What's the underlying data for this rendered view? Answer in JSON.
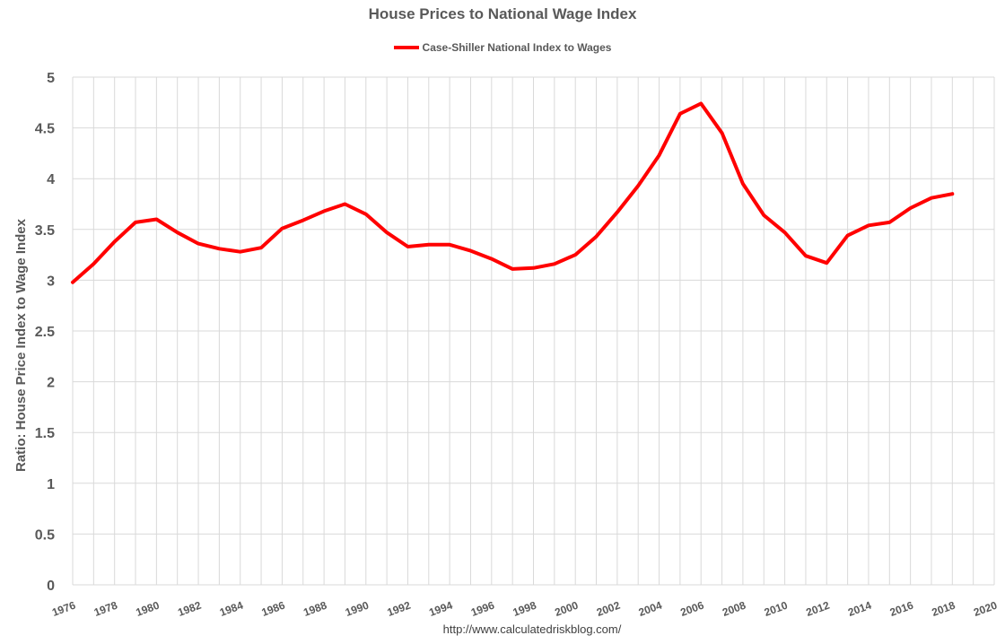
{
  "chart_data": {
    "type": "line",
    "title": "House Prices to National Wage Index",
    "xlabel": "",
    "ylabel": "Ratio: House Price Index to Wage Index",
    "xlim": [
      1976,
      2020
    ],
    "ylim": [
      0,
      5
    ],
    "ytick_step": 0.5,
    "yticks": [
      "0",
      "0.5",
      "1",
      "1.5",
      "2",
      "2.5",
      "3",
      "3.5",
      "4",
      "4.5",
      "5"
    ],
    "xticks": [
      "1976",
      "1978",
      "1980",
      "1982",
      "1984",
      "1986",
      "1988",
      "1990",
      "1992",
      "1994",
      "1996",
      "1998",
      "2000",
      "2002",
      "2004",
      "2006",
      "2008",
      "2010",
      "2012",
      "2014",
      "2016",
      "2018",
      "2020"
    ],
    "grid": true,
    "legend_position": "top",
    "series": [
      {
        "name": "Case-Shiller National Index to Wages",
        "color": "#ff0000",
        "x": [
          1976,
          1977,
          1978,
          1979,
          1980,
          1981,
          1982,
          1983,
          1984,
          1985,
          1986,
          1987,
          1988,
          1989,
          1990,
          1991,
          1992,
          1993,
          1994,
          1995,
          1996,
          1997,
          1998,
          1999,
          2000,
          2001,
          2002,
          2003,
          2004,
          2005,
          2006,
          2007,
          2008,
          2009,
          2010,
          2011,
          2012,
          2013,
          2014,
          2015,
          2016,
          2017,
          2018
        ],
        "values": [
          2.98,
          3.16,
          3.38,
          3.57,
          3.6,
          3.47,
          3.36,
          3.31,
          3.28,
          3.32,
          3.51,
          3.59,
          3.68,
          3.75,
          3.65,
          3.47,
          3.33,
          3.35,
          3.35,
          3.29,
          3.21,
          3.11,
          3.12,
          3.16,
          3.25,
          3.43,
          3.67,
          3.93,
          4.23,
          4.64,
          4.74,
          4.45,
          3.95,
          3.64,
          3.47,
          3.24,
          3.17,
          3.44,
          3.54,
          3.57,
          3.71,
          3.81,
          3.85
        ]
      }
    ]
  },
  "source_url": "http://www.calculatedriskblog.com/"
}
